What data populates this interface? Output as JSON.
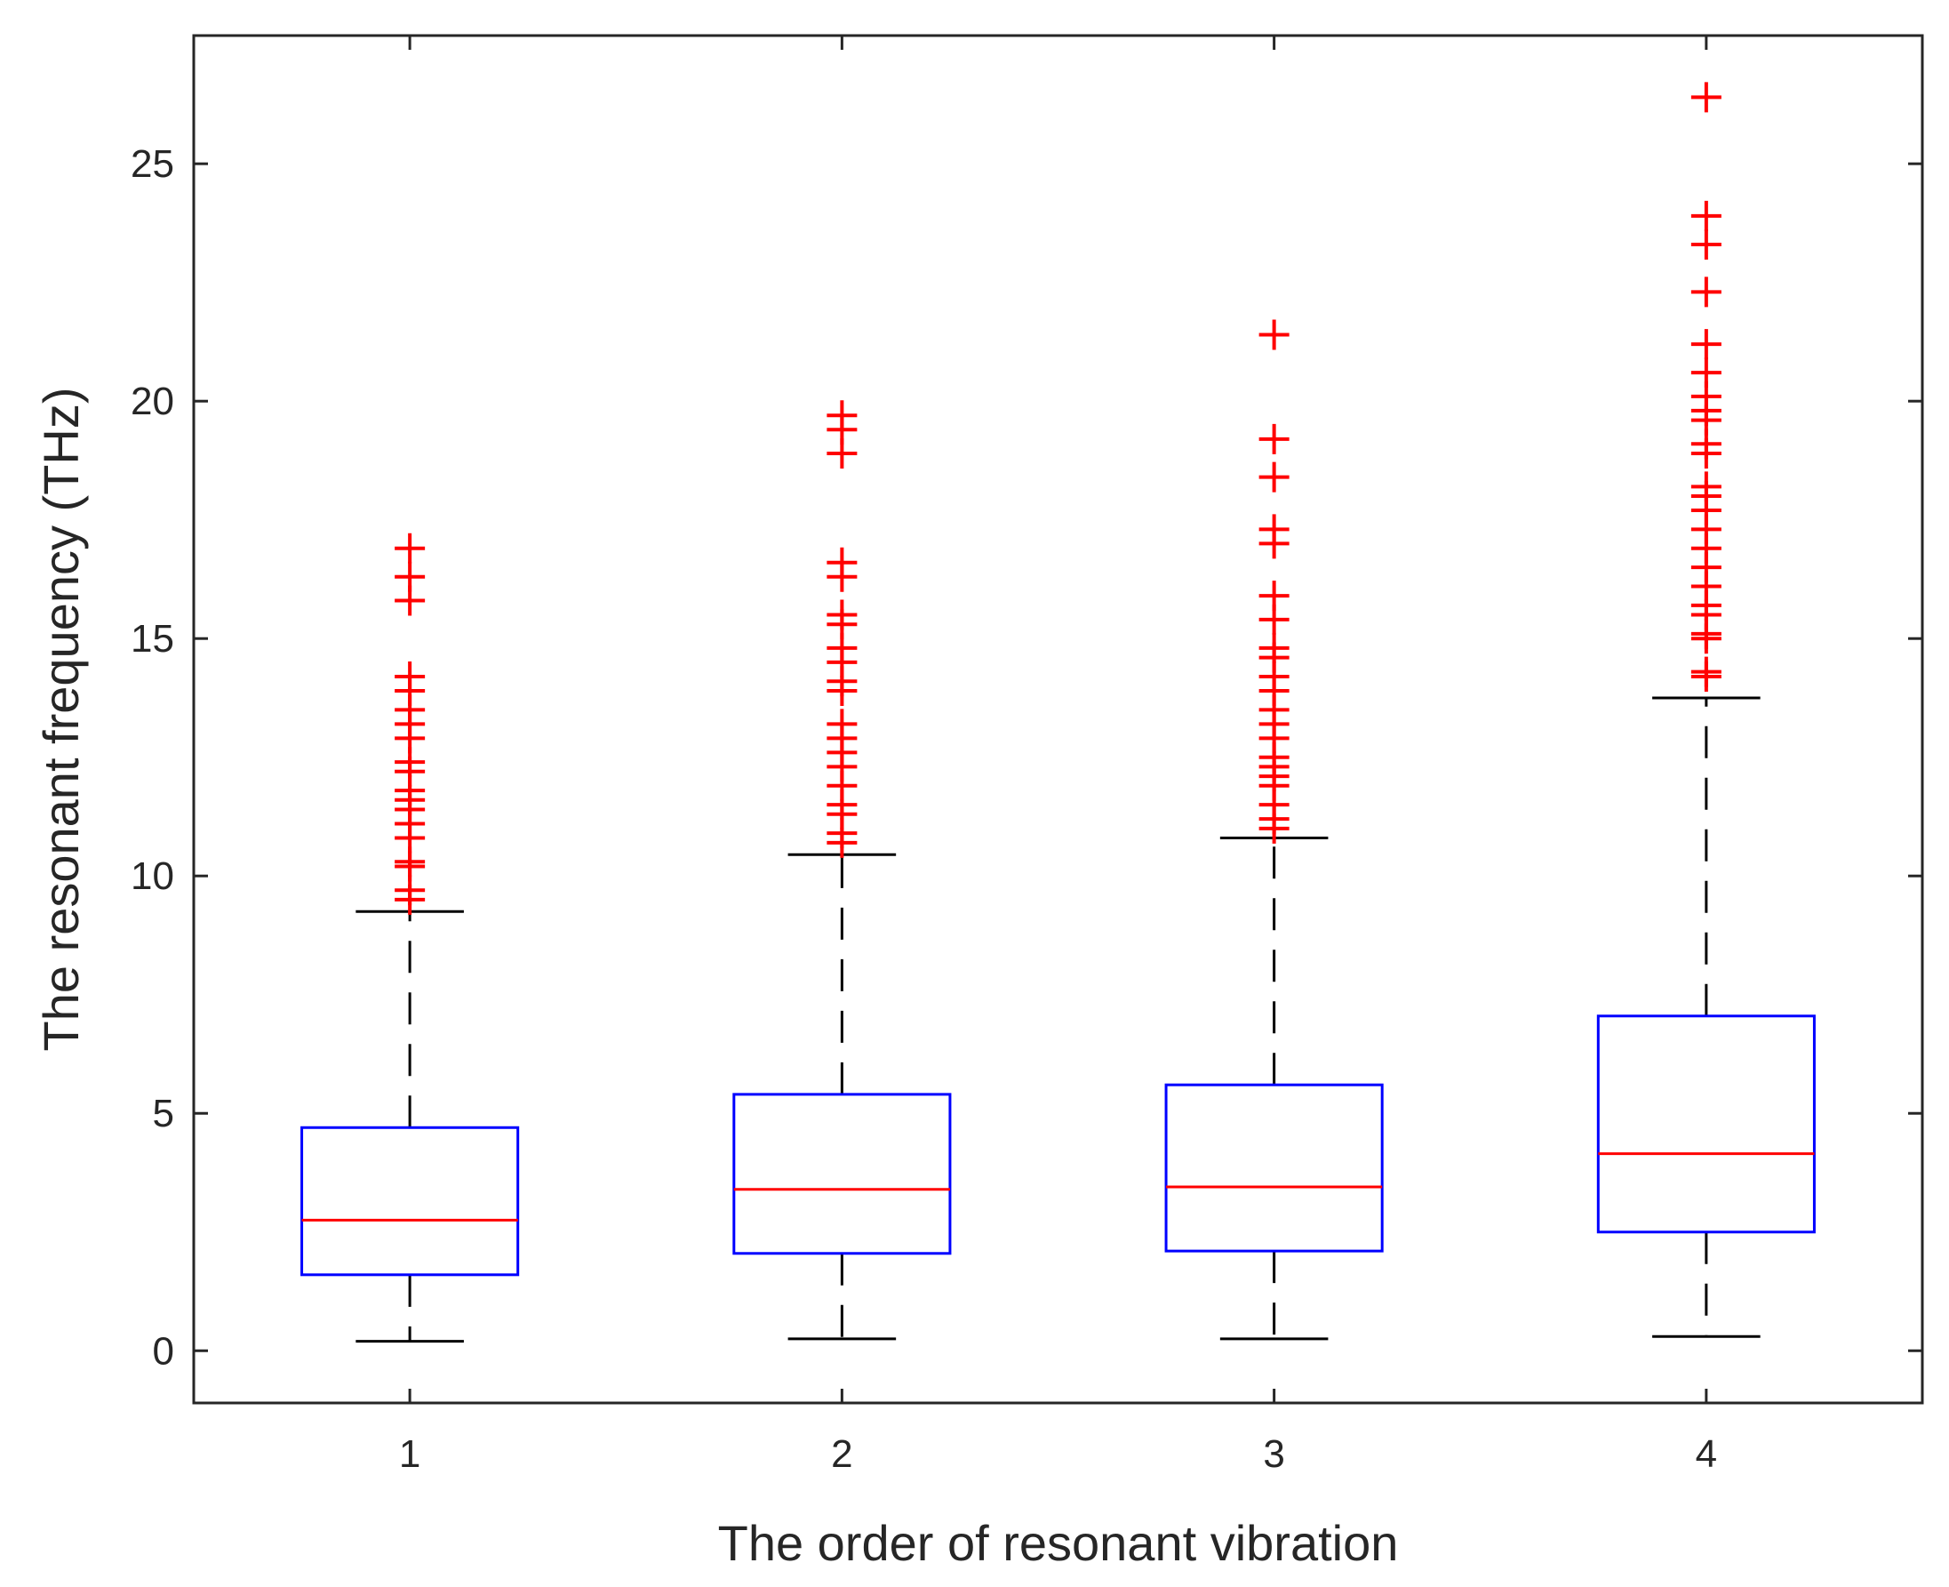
{
  "chart_data": {
    "type": "box",
    "title": "",
    "xlabel": "The order of resonant vibration",
    "ylabel": "The resonant frequency (THz)",
    "categories": [
      "1",
      "2",
      "3",
      "4"
    ],
    "xlim": [
      0.5,
      4.5
    ],
    "ylim": [
      -1.1,
      27.7
    ],
    "yticks": [
      0,
      5,
      10,
      15,
      20,
      25
    ],
    "grid": false,
    "colors": {
      "box": "#0000ff",
      "median": "#ff0000",
      "whisker": "#000000",
      "outlier": "#ff0000",
      "axis": "#262626"
    },
    "boxes": [
      {
        "category": "1",
        "whisker_low": 0.2,
        "q1": 1.6,
        "median": 2.75,
        "q3": 4.7,
        "whisker_high": 9.25,
        "outliers": [
          9.5,
          9.7,
          10.2,
          10.3,
          10.8,
          11.1,
          11.4,
          11.6,
          11.8,
          12.2,
          12.4,
          12.9,
          13.2,
          13.5,
          13.9,
          14.2,
          15.8,
          16.3,
          16.9
        ]
      },
      {
        "category": "2",
        "whisker_low": 0.25,
        "q1": 2.05,
        "median": 3.4,
        "q3": 5.4,
        "whisker_high": 10.45,
        "outliers": [
          10.7,
          10.9,
          11.3,
          11.5,
          11.9,
          12.3,
          12.6,
          12.9,
          13.2,
          13.9,
          14.1,
          14.5,
          14.8,
          15.3,
          15.5,
          16.3,
          16.6,
          18.9,
          19.4,
          19.7
        ]
      },
      {
        "category": "3",
        "whisker_low": 0.25,
        "q1": 2.1,
        "median": 3.45,
        "q3": 5.6,
        "whisker_high": 10.8,
        "outliers": [
          11.0,
          11.2,
          11.5,
          11.9,
          12.1,
          12.3,
          12.5,
          12.9,
          13.2,
          13.5,
          13.9,
          14.2,
          14.6,
          14.8,
          15.4,
          15.9,
          17.0,
          17.3,
          18.4,
          19.2,
          21.4
        ]
      },
      {
        "category": "4",
        "whisker_low": 0.3,
        "q1": 2.5,
        "median": 4.15,
        "q3": 7.05,
        "whisker_high": 13.75,
        "outliers": [
          14.2,
          14.3,
          15.0,
          15.1,
          15.5,
          15.7,
          16.1,
          16.5,
          16.9,
          17.3,
          17.7,
          18.0,
          18.2,
          18.9,
          19.1,
          19.6,
          19.8,
          20.1,
          20.6,
          21.2,
          22.3,
          23.3,
          23.9,
          26.4
        ]
      }
    ]
  }
}
